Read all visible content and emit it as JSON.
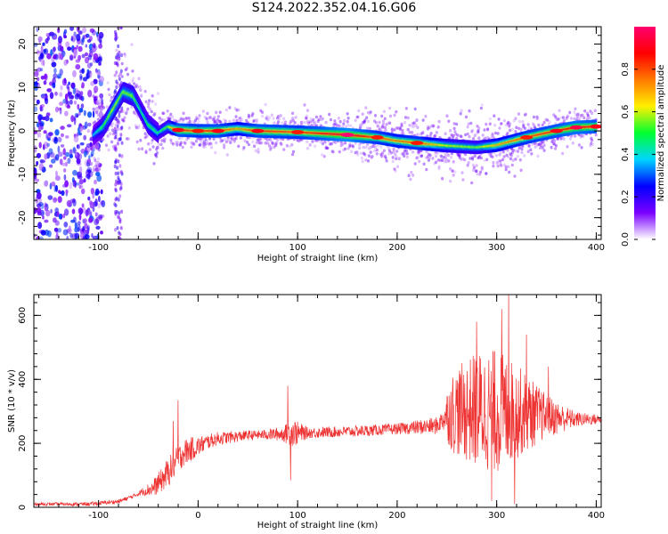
{
  "figure": {
    "title": "S124.2022.352.04.16.G06"
  },
  "chart_data": [
    {
      "type": "heatmap",
      "title": "",
      "xlabel": "Height of straight line (km)",
      "ylabel": "Frequency (Hz)",
      "xlim": [
        -165,
        405
      ],
      "ylim": [
        -25,
        24
      ],
      "x_ticks": [
        -100,
        0,
        100,
        200,
        300,
        400
      ],
      "y_ticks": [
        -20,
        -10,
        0,
        10,
        20
      ],
      "colorbar": {
        "label": "Normalized spectral amplitude",
        "range": [
          0,
          1
        ],
        "ticks": [
          0.0,
          0.2,
          0.4,
          0.6,
          0.8
        ],
        "colors": [
          "#ffffff",
          "#7a00ff",
          "#0000ff",
          "#00d5ff",
          "#00ff30",
          "#fff000",
          "#ff7a00",
          "#ff0000",
          "#ff0070"
        ]
      },
      "ridge": {
        "x": [
          -105,
          -95,
          -85,
          -75,
          -65,
          -58,
          -50,
          -40,
          -30,
          -20,
          0,
          20,
          40,
          60,
          100,
          150,
          180,
          200,
          220,
          250,
          280,
          300,
          330,
          360,
          380,
          400
        ],
        "y": [
          -1,
          1,
          5,
          9,
          8,
          5,
          1.5,
          -0.5,
          1,
          0.2,
          0,
          0,
          0.5,
          0,
          -0.3,
          -0.9,
          -1.5,
          -2.3,
          -2.8,
          -3.4,
          -3.8,
          -3.3,
          -1.5,
          0,
          0.8,
          1.0
        ],
        "amplitude": [
          0.35,
          0.5,
          0.6,
          0.55,
          0.55,
          0.45,
          0.5,
          0.45,
          0.55,
          0.85,
          0.8,
          0.85,
          0.7,
          0.85,
          0.8,
          0.95,
          0.8,
          0.75,
          0.8,
          0.6,
          0.55,
          0.7,
          0.8,
          0.85,
          0.9,
          0.85
        ]
      },
      "noise_region_x": [
        -165,
        -80
      ]
    },
    {
      "type": "line",
      "title": "",
      "xlabel": "Height of straight line (km)",
      "ylabel": "SNR (10 * v/v)",
      "xlim": [
        -165,
        405
      ],
      "ylim": [
        0,
        665
      ],
      "x_ticks": [
        -100,
        0,
        100,
        200,
        300,
        400
      ],
      "y_ticks": [
        0,
        200,
        400,
        600
      ],
      "line_color": "#ee3333",
      "envelope": {
        "x": [
          -165,
          -110,
          -80,
          -65,
          -55,
          -45,
          -35,
          -25,
          -20,
          -15,
          -5,
          0,
          10,
          20,
          35,
          50,
          70,
          90,
          95,
          100,
          130,
          160,
          200,
          240,
          250,
          260,
          280,
          300,
          320,
          340,
          360,
          380,
          405
        ],
        "y": [
          10,
          10,
          18,
          35,
          50,
          60,
          90,
          130,
          150,
          170,
          185,
          190,
          205,
          215,
          220,
          225,
          228,
          230,
          235,
          232,
          235,
          238,
          245,
          255,
          290,
          300,
          305,
          300,
          300,
          290,
          280,
          275,
          275
        ]
      },
      "amplitude": {
        "x": [
          -165,
          -60,
          -30,
          -10,
          10,
          60,
          85,
          95,
          110,
          200,
          245,
          255,
          280,
          300,
          320,
          350,
          380,
          405
        ],
        "y": [
          4,
          6,
          40,
          35,
          20,
          12,
          20,
          40,
          15,
          15,
          25,
          110,
          160,
          170,
          130,
          60,
          20,
          12
        ]
      },
      "spikes": [
        {
          "x": -20,
          "y": 335
        },
        {
          "x": -25,
          "y": 270
        },
        {
          "x": 90,
          "y": 380
        },
        {
          "x": 93,
          "y": 85
        },
        {
          "x": 280,
          "y": 580
        },
        {
          "x": 295,
          "y": 20
        },
        {
          "x": 305,
          "y": 620
        },
        {
          "x": 312,
          "y": 665
        },
        {
          "x": 318,
          "y": 10
        },
        {
          "x": 330,
          "y": 540
        },
        {
          "x": 352,
          "y": 440
        }
      ]
    }
  ]
}
